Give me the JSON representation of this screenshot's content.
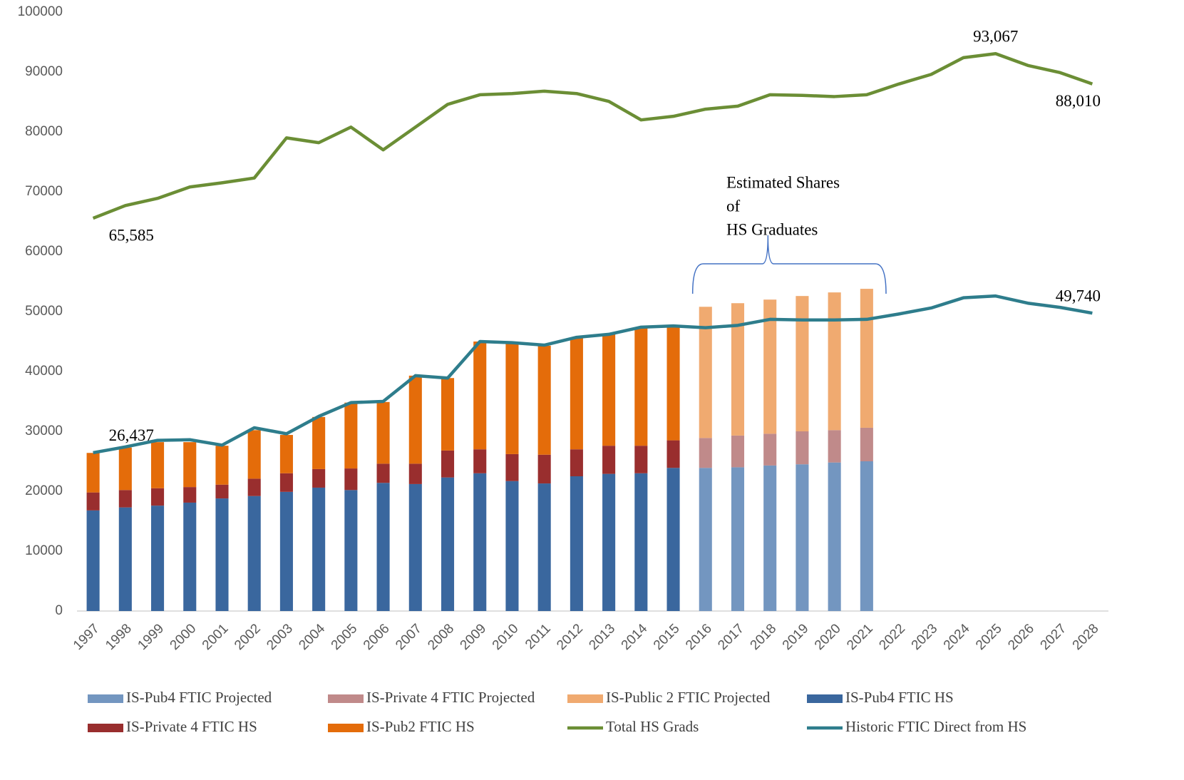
{
  "chart_data": {
    "type": "bar",
    "categories": [
      "1997",
      "1998",
      "1999",
      "2000",
      "2001",
      "2002",
      "2003",
      "2004",
      "2005",
      "2006",
      "2007",
      "2008",
      "2009",
      "2010",
      "2011",
      "2012",
      "2013",
      "2014",
      "2015",
      "2016",
      "2017",
      "2018",
      "2019",
      "2020",
      "2021",
      "2022",
      "2023",
      "2024",
      "2025",
      "2026",
      "2027",
      "2028"
    ],
    "ylim": [
      0,
      100000
    ],
    "yticks": [
      0,
      10000,
      20000,
      30000,
      40000,
      50000,
      60000,
      70000,
      80000,
      90000,
      100000
    ],
    "grid": false,
    "annotation": [
      "Estimated Shares",
      "of",
      "HS Graduates"
    ],
    "series": [
      {
        "name": "IS-Pub4 FTIC Projected",
        "type": "bar",
        "color": "#7396c0",
        "values": [
          null,
          null,
          null,
          null,
          null,
          null,
          null,
          null,
          null,
          null,
          null,
          null,
          null,
          null,
          null,
          null,
          null,
          null,
          null,
          23900,
          24000,
          24300,
          24500,
          24800,
          25000,
          null,
          null,
          null,
          null,
          null,
          null,
          null
        ]
      },
      {
        "name": "IS-Private 4 FTIC Projected",
        "type": "bar",
        "color": "#c08a8a",
        "values": [
          null,
          null,
          null,
          null,
          null,
          null,
          null,
          null,
          null,
          null,
          null,
          null,
          null,
          null,
          null,
          null,
          null,
          null,
          null,
          5000,
          5300,
          5300,
          5500,
          5400,
          5600,
          null,
          null,
          null,
          null,
          null,
          null,
          null
        ]
      },
      {
        "name": "IS-Public 2 FTIC Projected",
        "type": "bar",
        "color": "#f0aa70",
        "values": [
          null,
          null,
          null,
          null,
          null,
          null,
          null,
          null,
          null,
          null,
          null,
          null,
          null,
          null,
          null,
          null,
          null,
          null,
          null,
          21900,
          22100,
          22400,
          22600,
          23000,
          23200,
          null,
          null,
          null,
          null,
          null,
          null,
          null
        ]
      },
      {
        "name": "IS-Pub4 FTIC HS",
        "type": "bar",
        "color": "#3a679e",
        "values": [
          16800,
          17300,
          17600,
          18100,
          18800,
          19200,
          19900,
          20600,
          20200,
          21400,
          21200,
          22300,
          23000,
          21700,
          21300,
          22500,
          22900,
          23000,
          23900,
          null,
          null,
          null,
          null,
          null,
          null,
          null,
          null,
          null,
          null,
          null,
          null,
          null
        ]
      },
      {
        "name": "IS-Private 4 FTIC HS",
        "type": "bar",
        "color": "#992e2e",
        "values": [
          3000,
          2900,
          2900,
          2600,
          2300,
          2900,
          3100,
          3100,
          3600,
          3200,
          3400,
          4500,
          4000,
          4500,
          4800,
          4500,
          4700,
          4600,
          4600,
          null,
          null,
          null,
          null,
          null,
          null,
          null,
          null,
          null,
          null,
          null,
          null,
          null
        ]
      },
      {
        "name": "IS-Pub2 FTIC HS",
        "type": "bar",
        "color": "#e46c0a",
        "values": [
          6600,
          7100,
          7700,
          7500,
          6500,
          8100,
          6400,
          8700,
          11000,
          10300,
          14700,
          12100,
          18000,
          18400,
          18200,
          18700,
          18700,
          19800,
          19100,
          null,
          null,
          null,
          null,
          null,
          null,
          null,
          null,
          null,
          null,
          null,
          null,
          null
        ]
      },
      {
        "name": "Total HS Grads",
        "type": "line",
        "color": "#6b8e35",
        "values": [
          65585,
          67700,
          68900,
          70800,
          71500,
          72300,
          79000,
          78200,
          80800,
          77000,
          80800,
          84600,
          86200,
          86400,
          86800,
          86400,
          85100,
          82000,
          82600,
          83800,
          84300,
          86200,
          86100,
          85900,
          86200,
          88000,
          89600,
          92400,
          93067,
          91100,
          89900,
          88010
        ],
        "value_labels": [
          "65,585",
          null,
          null,
          null,
          null,
          null,
          null,
          null,
          null,
          null,
          null,
          null,
          null,
          null,
          null,
          null,
          null,
          null,
          null,
          null,
          null,
          null,
          null,
          null,
          null,
          null,
          null,
          null,
          "93,067",
          null,
          null,
          "88,010"
        ]
      },
      {
        "name": "Historic FTIC Direct from HS",
        "type": "line",
        "color": "#2e7d8c",
        "values": [
          26437,
          27400,
          28500,
          28600,
          27700,
          30600,
          29600,
          32500,
          34800,
          35000,
          39300,
          38900,
          45000,
          44800,
          44400,
          45700,
          46200,
          47400,
          47600,
          47300,
          47700,
          48700,
          48600,
          48600,
          48700,
          49600,
          50600,
          52300,
          52600,
          51400,
          50700,
          49740
        ],
        "value_labels": [
          "26,437",
          null,
          null,
          null,
          null,
          null,
          null,
          null,
          null,
          null,
          null,
          null,
          null,
          null,
          null,
          null,
          null,
          null,
          null,
          null,
          null,
          null,
          null,
          null,
          null,
          null,
          null,
          null,
          null,
          null,
          null,
          "49,740"
        ]
      }
    ]
  }
}
